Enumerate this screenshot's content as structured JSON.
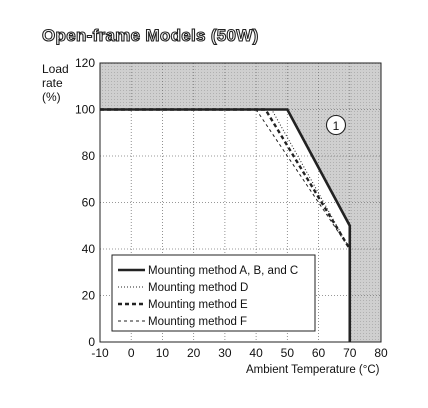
{
  "chart_data": {
    "type": "line",
    "title": "Open-frame Models (50W)",
    "ylabel": [
      "Load",
      "rate",
      "(%)"
    ],
    "xlabel": "Ambient Temperature (°C)",
    "xlim": [
      -10,
      80
    ],
    "ylim": [
      0,
      120
    ],
    "xticks": [
      "-10",
      "0",
      "10",
      "20",
      "30",
      "40",
      "50",
      "60",
      "70",
      "80"
    ],
    "yticks": [
      "0",
      "20",
      "40",
      "60",
      "80",
      "100",
      "120"
    ],
    "grid": true,
    "annotation": "1",
    "shaded_regions": [
      {
        "x": [
          -10,
          80
        ],
        "y": [
          100,
          120
        ]
      },
      {
        "x": [
          70,
          80
        ],
        "y": [
          0,
          120
        ]
      },
      {
        "x_line": [
          50,
          70
        ],
        "y_line": [
          100,
          50
        ],
        "fill_above": true
      }
    ],
    "legend_position": "bottom-left",
    "series": [
      {
        "name": "Mounting method A, B, and C",
        "style": "solid-thick",
        "x": [
          -10,
          50,
          70,
          70
        ],
        "y": [
          100,
          100,
          50,
          0
        ]
      },
      {
        "name": "Mounting method D",
        "style": "dotted",
        "x": [
          -10,
          45,
          70,
          70
        ],
        "y": [
          100,
          100,
          40,
          0
        ]
      },
      {
        "name": "Mounting method E",
        "style": "dashed-thick",
        "x": [
          -10,
          43,
          70,
          70
        ],
        "y": [
          100,
          100,
          40,
          0
        ]
      },
      {
        "name": "Mounting method F",
        "style": "dashed-thin",
        "x": [
          -10,
          40,
          70,
          70
        ],
        "y": [
          100,
          100,
          40,
          0
        ]
      }
    ]
  }
}
